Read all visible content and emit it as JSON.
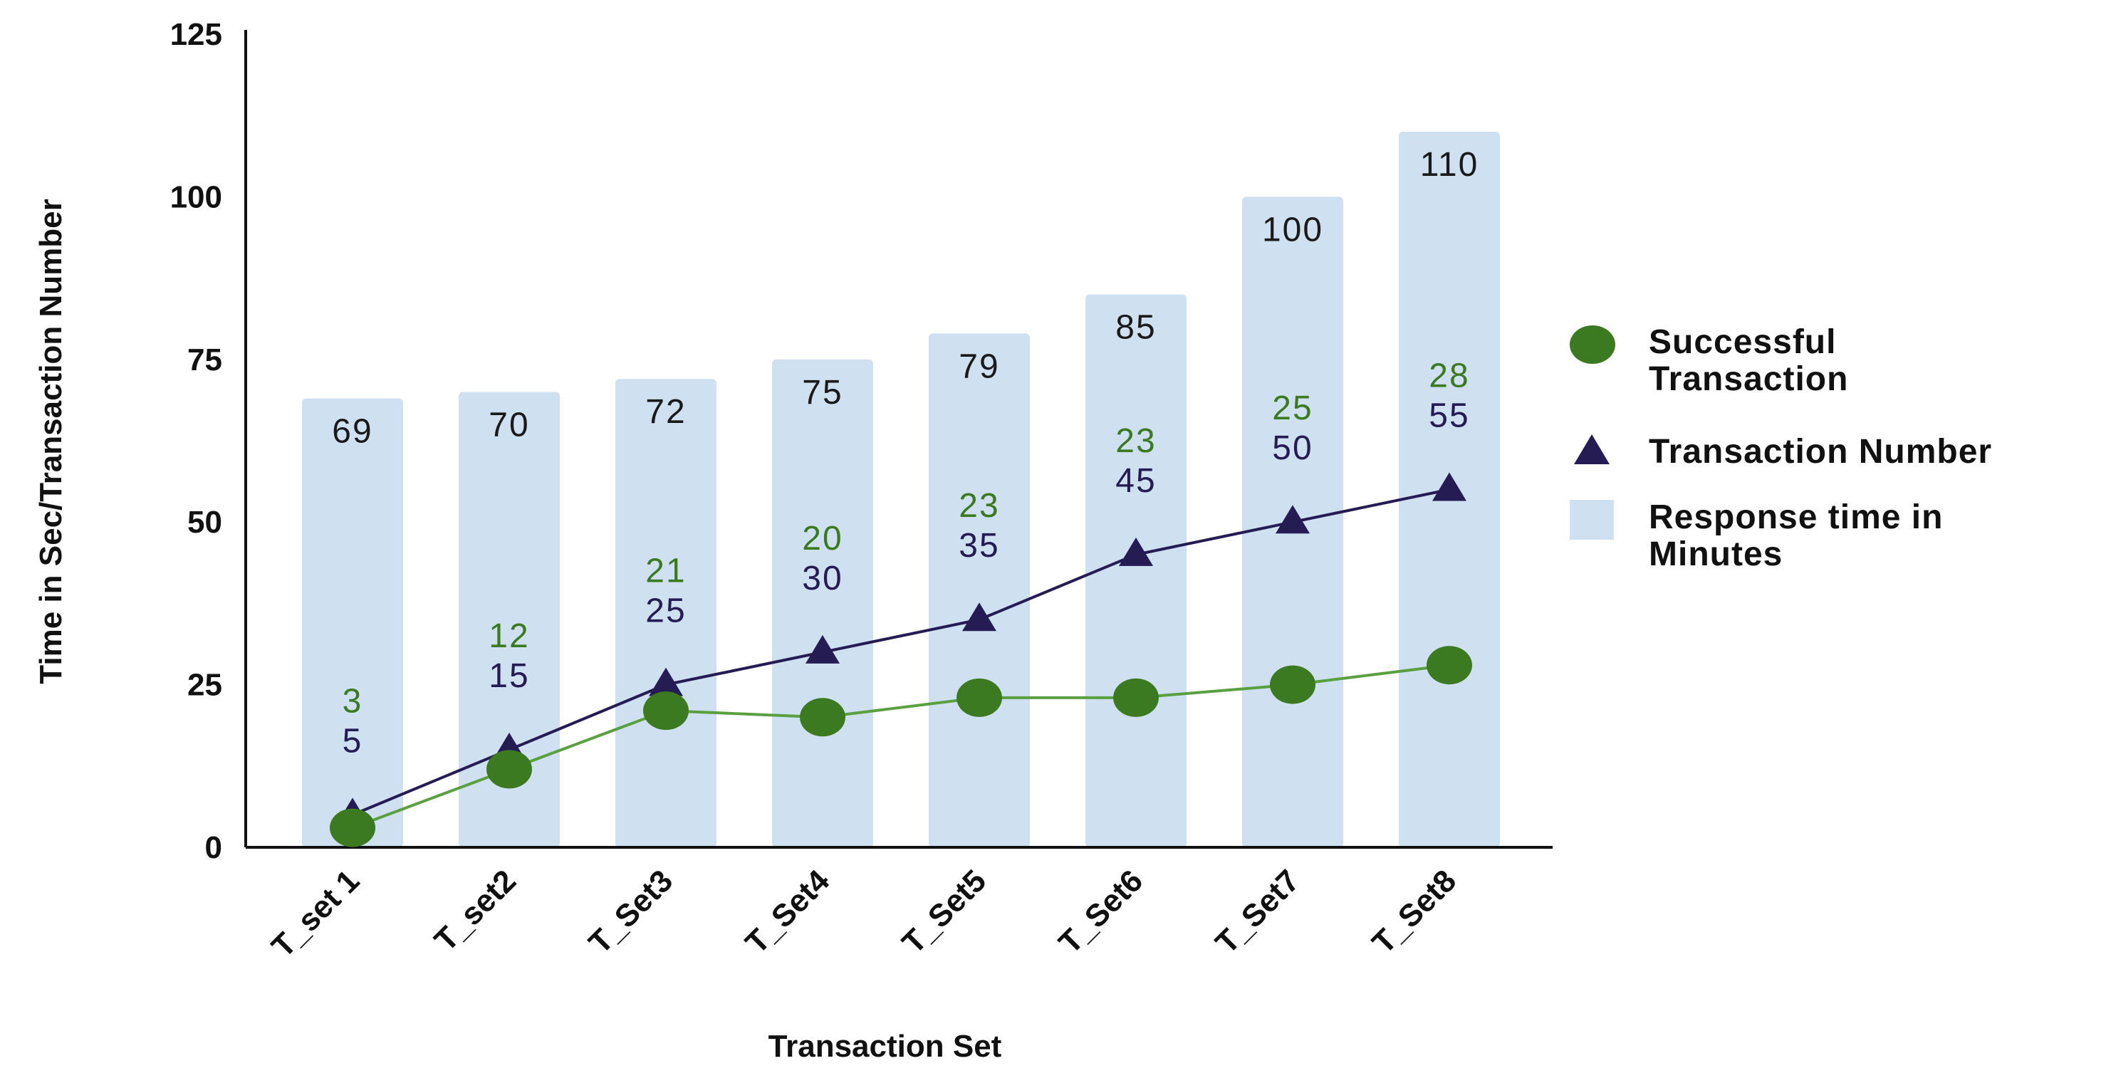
{
  "chart_data": {
    "type": "bar",
    "categories": [
      "T_set 1",
      "T_set2",
      "T_Set3",
      "T_Set4",
      "T_Set5",
      "T_Set6",
      "T_Set7",
      "T_Set8"
    ],
    "series": [
      {
        "name": "Response time in Minutes",
        "type": "bar",
        "color": "#cfe0f1",
        "values": [
          69,
          70,
          72,
          75,
          79,
          85,
          100,
          110
        ]
      },
      {
        "name": "Transaction Number",
        "type": "line",
        "marker": "triangle",
        "color": "#241c52",
        "values": [
          5,
          15,
          25,
          30,
          35,
          45,
          50,
          55
        ]
      },
      {
        "name": "Successful Transaction",
        "type": "line",
        "marker": "circle",
        "color": "#3c7a22",
        "line_color": "#5aa040",
        "values": [
          3,
          12,
          21,
          20,
          23,
          23,
          25,
          28
        ]
      }
    ],
    "xlabel": "Transaction Set",
    "ylabel": "Time in Sec/Transaction Number",
    "ylim": [
      0,
      125
    ],
    "yticks": [
      "0",
      "25",
      "50",
      "75",
      "100",
      "125"
    ],
    "grid": false,
    "legend_position": "right",
    "legend": [
      {
        "label_lines": [
          "Successful",
          "Transaction"
        ],
        "marker": "circle",
        "color": "#3c7a22"
      },
      {
        "label_lines": [
          "Transaction Number"
        ],
        "marker": "triangle",
        "color": "#241c52"
      },
      {
        "label_lines": [
          "Response time in",
          "Minutes"
        ],
        "marker": "square",
        "color": "#cfe0f1"
      }
    ]
  }
}
